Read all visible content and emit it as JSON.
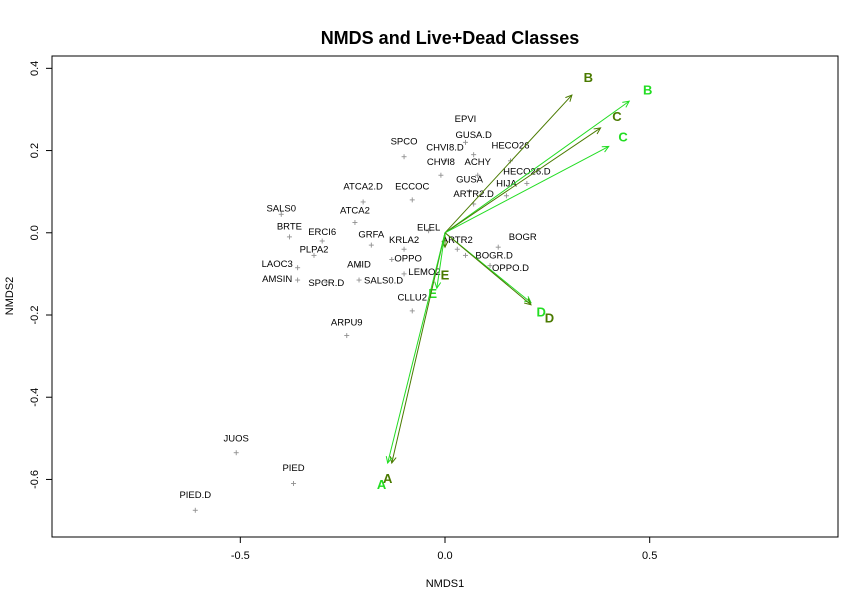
{
  "chart_data": {
    "type": "scatter",
    "title": "NMDS and Live+Dead Classes",
    "xlabel": "NMDS1",
    "ylabel": "NMDS2",
    "xlim": [
      -0.96,
      0.96
    ],
    "ylim": [
      -0.74,
      0.43
    ],
    "x_ticks": [
      -0.5,
      0.0,
      0.5
    ],
    "x_tick_labels": [
      "-0.5",
      "0.0",
      "0.5"
    ],
    "y_ticks": [
      -0.6,
      -0.4,
      -0.2,
      0.0,
      0.2,
      0.4
    ],
    "y_tick_labels": [
      "-0.6",
      "-0.4",
      "-0.2",
      "0.0",
      "0.2",
      "0.4"
    ],
    "grid": false,
    "colors": {
      "dark_vector": "#4a7a00",
      "bright_vector": "#22dd22",
      "species_point": "#909090"
    },
    "species": [
      {
        "label": "EPVI",
        "x": 0.05,
        "y": 0.22,
        "lx": 0.05,
        "ly": 0.27
      },
      {
        "label": "GUSA.D",
        "x": 0.07,
        "y": 0.19,
        "lx": 0.07,
        "ly": 0.23
      },
      {
        "label": "SPCO",
        "x": -0.1,
        "y": 0.185,
        "lx": -0.1,
        "ly": 0.215
      },
      {
        "label": "CHVI8.D",
        "x": 0.0,
        "y": 0.175,
        "lx": 0.0,
        "ly": 0.2
      },
      {
        "label": "HECO26",
        "x": 0.16,
        "y": 0.175,
        "lx": 0.16,
        "ly": 0.205
      },
      {
        "label": "CHVI8",
        "x": -0.01,
        "y": 0.14,
        "lx": -0.01,
        "ly": 0.165
      },
      {
        "label": "ACHY",
        "x": 0.08,
        "y": 0.14,
        "lx": 0.08,
        "ly": 0.165
      },
      {
        "label": "HECO26.D",
        "x": 0.2,
        "y": 0.12,
        "lx": 0.2,
        "ly": 0.142
      },
      {
        "label": "GUSA",
        "x": 0.06,
        "y": 0.1,
        "lx": 0.06,
        "ly": 0.122
      },
      {
        "label": "HIJA",
        "x": 0.15,
        "y": 0.09,
        "lx": 0.15,
        "ly": 0.112
      },
      {
        "label": "ATCA2.D",
        "x": -0.2,
        "y": 0.075,
        "lx": -0.2,
        "ly": 0.105
      },
      {
        "label": "ECCOC",
        "x": -0.08,
        "y": 0.08,
        "lx": -0.08,
        "ly": 0.105
      },
      {
        "label": "ARTR2.D",
        "x": 0.07,
        "y": 0.07,
        "lx": 0.07,
        "ly": 0.087
      },
      {
        "label": "SALS0",
        "x": -0.4,
        "y": 0.045,
        "lx": -0.4,
        "ly": 0.052
      },
      {
        "label": "ATCA2",
        "x": -0.22,
        "y": 0.025,
        "lx": -0.22,
        "ly": 0.047
      },
      {
        "label": "BRTE",
        "x": -0.38,
        "y": -0.01,
        "lx": -0.38,
        "ly": 0.008
      },
      {
        "label": "ELEL",
        "x": -0.04,
        "y": 0.005,
        "lx": -0.04,
        "ly": 0.005
      },
      {
        "label": "ERCI6",
        "x": -0.3,
        "y": -0.02,
        "lx": -0.3,
        "ly": -0.005
      },
      {
        "label": "GRFA",
        "x": -0.18,
        "y": -0.03,
        "lx": -0.18,
        "ly": -0.012
      },
      {
        "label": "KRLA2",
        "x": -0.1,
        "y": -0.04,
        "lx": -0.1,
        "ly": -0.025
      },
      {
        "label": "ARTR2",
        "x": 0.03,
        "y": -0.04,
        "lx": 0.03,
        "ly": -0.025
      },
      {
        "label": "BOGR",
        "x": 0.13,
        "y": -0.035,
        "lx": 0.19,
        "ly": -0.018
      },
      {
        "label": "PLPA2",
        "x": -0.32,
        "y": -0.055,
        "lx": -0.32,
        "ly": -0.048
      },
      {
        "label": "OPPO",
        "x": -0.13,
        "y": -0.065,
        "lx": -0.09,
        "ly": -0.07
      },
      {
        "label": "BOGR.D",
        "x": 0.05,
        "y": -0.055,
        "lx": 0.12,
        "ly": -0.062
      },
      {
        "label": "LAOC3",
        "x": -0.36,
        "y": -0.085,
        "lx": -0.41,
        "ly": -0.083
      },
      {
        "label": "AMID",
        "x": -0.21,
        "y": -0.08,
        "lx": -0.21,
        "ly": -0.085
      },
      {
        "label": "OPPO.D",
        "x": 0.11,
        "y": -0.08,
        "lx": 0.16,
        "ly": -0.093
      },
      {
        "label": "LEMO2",
        "x": -0.1,
        "y": -0.1,
        "lx": -0.05,
        "ly": -0.103
      },
      {
        "label": "AMSIN",
        "x": -0.36,
        "y": -0.115,
        "lx": -0.41,
        "ly": -0.12
      },
      {
        "label": "SPCR.D",
        "x": -0.29,
        "y": -0.12,
        "lx": -0.29,
        "ly": -0.13
      },
      {
        "label": "SALS0.D",
        "x": -0.21,
        "y": -0.115,
        "lx": -0.15,
        "ly": -0.123
      },
      {
        "label": "CLLU2",
        "x": -0.08,
        "y": -0.19,
        "lx": -0.08,
        "ly": -0.165
      },
      {
        "label": "ARPU9",
        "x": -0.24,
        "y": -0.25,
        "lx": -0.24,
        "ly": -0.225
      },
      {
        "label": "JUOS",
        "x": -0.51,
        "y": -0.535,
        "lx": -0.51,
        "ly": -0.508
      },
      {
        "label": "PIED",
        "x": -0.37,
        "y": -0.61,
        "lx": -0.37,
        "ly": -0.58
      },
      {
        "label": "PIED.D",
        "x": -0.61,
        "y": -0.675,
        "lx": -0.61,
        "ly": -0.645
      }
    ],
    "vectors": [
      {
        "label": "B",
        "color": "dark",
        "x": 0.31,
        "y": 0.335,
        "lx": 0.35,
        "ly": 0.375
      },
      {
        "label": "B",
        "color": "bright",
        "x": 0.45,
        "y": 0.32,
        "lx": 0.495,
        "ly": 0.345
      },
      {
        "label": "C",
        "color": "dark",
        "x": 0.38,
        "y": 0.255,
        "lx": 0.42,
        "ly": 0.28
      },
      {
        "label": "C",
        "color": "bright",
        "x": 0.4,
        "y": 0.21,
        "lx": 0.435,
        "ly": 0.23
      },
      {
        "label": "E",
        "color": "dark",
        "x": 0.0,
        "y": -0.035,
        "lx": 0.0,
        "ly": -0.105
      },
      {
        "label": "E",
        "color": "bright",
        "x": -0.02,
        "y": -0.135,
        "lx": -0.03,
        "ly": -0.15
      },
      {
        "label": "D",
        "color": "bright",
        "x": 0.21,
        "y": -0.17,
        "lx": 0.235,
        "ly": -0.195
      },
      {
        "label": "D",
        "color": "dark",
        "x": 0.21,
        "y": -0.175,
        "lx": 0.255,
        "ly": -0.21
      },
      {
        "label": "A",
        "color": "dark",
        "x": -0.13,
        "y": -0.56,
        "lx": -0.14,
        "ly": -0.6
      },
      {
        "label": "A",
        "color": "bright",
        "x": -0.14,
        "y": -0.56,
        "lx": -0.155,
        "ly": -0.615
      }
    ]
  }
}
